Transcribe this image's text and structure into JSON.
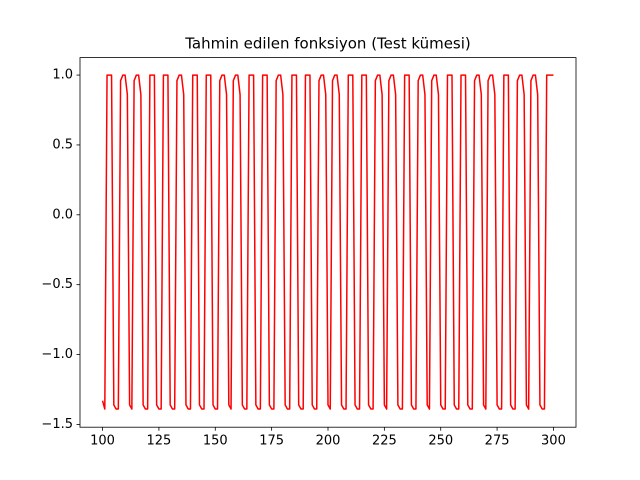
{
  "chart_data": {
    "type": "line",
    "title": "Tahmin edilen fonksiyon (Test kümesi)",
    "color": "#ff0000",
    "x": [
      100,
      101,
      102,
      103,
      104,
      105,
      106,
      107,
      108,
      109,
      110,
      111,
      112,
      113,
      114,
      115,
      116,
      117,
      118,
      119,
      120,
      121,
      122,
      123,
      124,
      125,
      126,
      127,
      128,
      129,
      130,
      131,
      132,
      133,
      134,
      135,
      136,
      137,
      138,
      139,
      140,
      141,
      142,
      143,
      144,
      145,
      146,
      147,
      148,
      149,
      150,
      151,
      152,
      153,
      154,
      155,
      156,
      157,
      158,
      159,
      160,
      161,
      162,
      163,
      164,
      165,
      166,
      167,
      168,
      169,
      170,
      171,
      172,
      173,
      174,
      175,
      176,
      177,
      178,
      179,
      180,
      181,
      182,
      183,
      184,
      185,
      186,
      187,
      188,
      189,
      190,
      191,
      192,
      193,
      194,
      195,
      196,
      197,
      198,
      199,
      200,
      201,
      202,
      203,
      204,
      205,
      206,
      207,
      208,
      209,
      210,
      211,
      212,
      213,
      214,
      215,
      216,
      217,
      218,
      219,
      220,
      221,
      222,
      223,
      224,
      225,
      226,
      227,
      228,
      229,
      230,
      231,
      232,
      233,
      234,
      235,
      236,
      237,
      238,
      239,
      240,
      241,
      242,
      243,
      244,
      245,
      246,
      247,
      248,
      249,
      250,
      251,
      252,
      253,
      254,
      255,
      256,
      257,
      258,
      259,
      260,
      261,
      262,
      263,
      264,
      265,
      266,
      267,
      268,
      269,
      270,
      271,
      272,
      273,
      274,
      275,
      276,
      277,
      278,
      279,
      280,
      281,
      282,
      283,
      284,
      285,
      286,
      287,
      288,
      289,
      290,
      291,
      292,
      293,
      294,
      295,
      296,
      297,
      298,
      299,
      300
    ],
    "values": [
      -1.33,
      -1.39,
      1,
      1,
      1,
      -1.36,
      -1.39,
      -1.39,
      0.96,
      1,
      1,
      0.86,
      -1.36,
      -1.39,
      0.96,
      1,
      1,
      0.86,
      -1.36,
      -1.39,
      -1.39,
      1,
      1,
      1,
      -1.36,
      -1.39,
      -1.39,
      1,
      1,
      1,
      -1.36,
      -1.39,
      -1.39,
      0.96,
      1,
      1,
      0.86,
      -1.36,
      -1.39,
      -1.39,
      1,
      1,
      1,
      -1.36,
      -1.39,
      -1.39,
      1,
      1,
      1,
      -1.36,
      -1.39,
      -1.39,
      0.96,
      1,
      1,
      0.86,
      -1.36,
      -1.39,
      0.96,
      1,
      1,
      0.86,
      -1.36,
      -1.39,
      -1.39,
      1,
      1,
      1,
      -1.36,
      -1.39,
      -1.39,
      1,
      1,
      1,
      -1.36,
      -1.39,
      -1.39,
      0.96,
      1,
      1,
      0.86,
      -1.36,
      -1.39,
      -1.39,
      1,
      1,
      1,
      -1.36,
      -1.39,
      -1.39,
      1,
      1,
      1,
      -1.36,
      -1.39,
      -1.39,
      0.96,
      1,
      1,
      0.86,
      -1.36,
      -1.39,
      0.96,
      1,
      1,
      0.86,
      -1.36,
      -1.39,
      -1.39,
      1,
      1,
      1,
      -1.36,
      -1.39,
      -1.39,
      1,
      1,
      1,
      -1.36,
      -1.39,
      -1.39,
      0.96,
      1,
      1,
      0.86,
      -1.36,
      -1.39,
      0.96,
      1,
      1,
      0.86,
      -1.36,
      -1.39,
      -1.39,
      1,
      1,
      1,
      -1.36,
      -1.39,
      -1.39,
      0.96,
      1,
      1,
      0.86,
      -1.36,
      -1.39,
      0.96,
      1,
      1,
      0.86,
      -1.36,
      -1.39,
      -1.39,
      1,
      1,
      1,
      -1.36,
      -1.39,
      -1.39,
      1,
      1,
      1,
      -1.36,
      -1.39,
      -1.39,
      0.96,
      1,
      1,
      0.86,
      -1.36,
      -1.39,
      0.96,
      1,
      1,
      0.86,
      -1.36,
      -1.39,
      -1.39,
      1,
      1,
      1,
      -1.36,
      -1.39,
      -1.39,
      0.96,
      1,
      1,
      0.86,
      -1.36,
      -1.39,
      0.96,
      1,
      1,
      0.86,
      -1.36,
      -1.39,
      -1.39,
      1,
      1,
      1,
      1
    ],
    "xlim": [
      90,
      310
    ],
    "xticks": [
      100,
      125,
      150,
      175,
      200,
      225,
      250,
      275,
      300
    ],
    "ylim": [
      -1.52,
      1.125
    ],
    "yticks": [
      {
        "value": -1.5,
        "label": "−1.5"
      },
      {
        "value": -1.0,
        "label": "−1.0"
      },
      {
        "value": -0.5,
        "label": "−0.5"
      },
      {
        "value": 0,
        "label": "0.0"
      },
      0.5,
      {
        "value": 1.0,
        "label": "1.0"
      }
    ],
    "grid": false
  }
}
